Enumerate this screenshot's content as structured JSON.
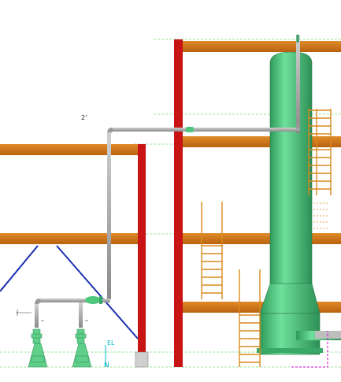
{
  "view": {
    "labels": {
      "pipe_size": "2'",
      "equipment_tag": "EL",
      "north_marker": "N"
    },
    "colors": {
      "background": "#ffffff",
      "beam": "#d2791a",
      "column": "#c81414",
      "brace": "#1a2fb0",
      "pipe": "#a6a6a6",
      "vessel": "#4ec77e",
      "ladder": "#d98a1f",
      "gridline": "#7fe07f",
      "annotation": "#00b8c8",
      "dimension": "#d000d0"
    }
  }
}
